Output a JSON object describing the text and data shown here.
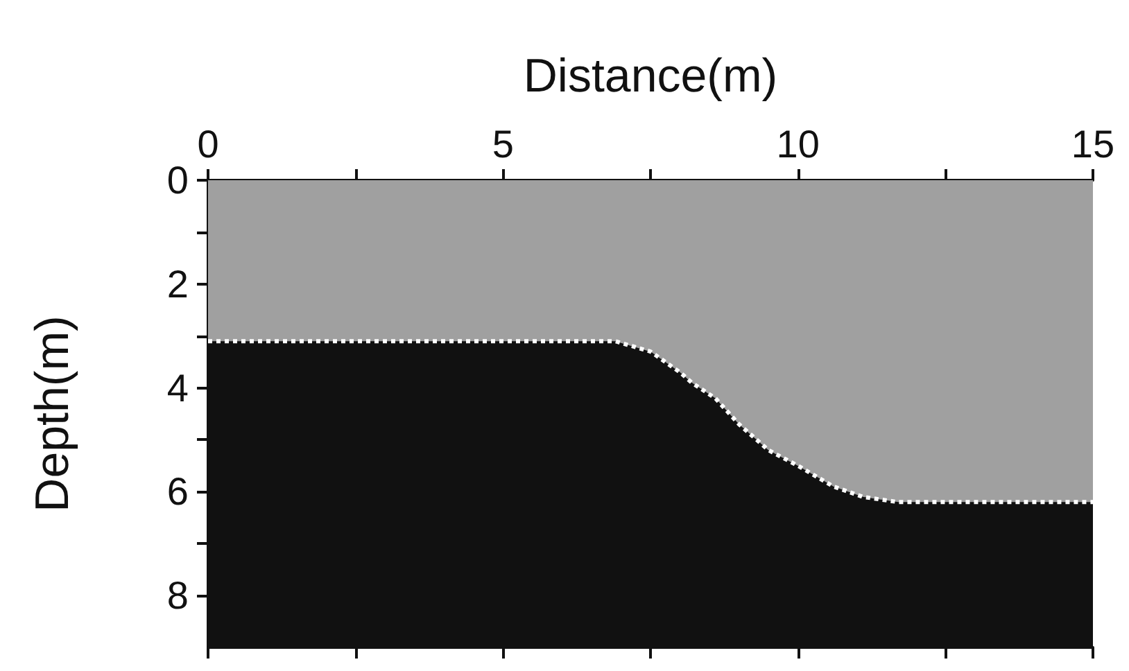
{
  "chart_data": {
    "type": "area",
    "xlabel": "Distance(m)",
    "ylabel": "Depth(m)",
    "x": [
      0,
      1,
      2,
      3,
      4,
      5,
      6,
      6.9,
      7.5,
      8,
      8.2,
      8.6,
      9,
      9.5,
      10,
      10.6,
      11.1,
      11.7,
      12,
      13,
      14,
      15
    ],
    "series": [
      {
        "color": "#a0a0a0",
        "values": [
          3.1,
          3.1,
          3.1,
          3.1,
          3.1,
          3.1,
          3.1,
          3.1,
          3.3,
          3.7,
          3.9,
          4.2,
          4.7,
          5.2,
          5.5,
          5.9,
          6.1,
          6.2,
          6.2,
          6.2,
          6.2,
          6.2
        ]
      }
    ],
    "xlim": [
      0,
      15
    ],
    "xticks": [
      0,
      {
        "value": 2.5,
        "label": null
      },
      5,
      {
        "value": 7.5,
        "label": null
      },
      10,
      {
        "value": 12.5,
        "label": null
      },
      15
    ],
    "ylim": [
      9,
      0
    ],
    "yticks": [
      0,
      {
        "value": 1,
        "label": null
      },
      2,
      {
        "value": 3,
        "label": null
      },
      4,
      {
        "value": 5,
        "label": null
      },
      6,
      {
        "value": 7,
        "label": null
      },
      8
    ],
    "line_style": "dotted",
    "grid": false
  }
}
